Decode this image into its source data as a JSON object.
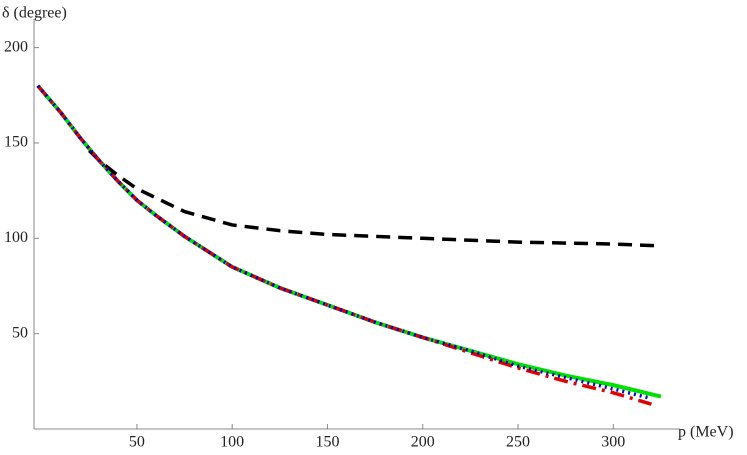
{
  "chart_data": {
    "type": "line",
    "x_label": "p (MeV)",
    "y_label": "δ (degree)",
    "xlim": [
      -4,
      335
    ],
    "ylim": [
      0,
      215
    ],
    "xticks": [
      50,
      100,
      150,
      200,
      250,
      300
    ],
    "yticks": [
      50,
      100,
      150,
      200
    ],
    "grid": false,
    "series": [
      {
        "color": "#00e000",
        "style": "solid",
        "x": [
          -2,
          10,
          20,
          30,
          40,
          50,
          60,
          75,
          100,
          125,
          150,
          175,
          200,
          225,
          250,
          275,
          300,
          325
        ],
        "values": [
          180,
          166,
          153,
          141,
          130,
          120,
          112,
          101,
          85,
          74,
          65,
          56,
          48,
          41,
          34,
          28,
          23,
          17
        ]
      },
      {
        "color": "#000000",
        "style": "dashed",
        "x": [
          25,
          30,
          40,
          50,
          75,
          100,
          125,
          150,
          200,
          250,
          300,
          325
        ],
        "values": [
          146,
          141,
          133,
          126,
          114,
          107,
          104,
          102,
          100,
          98,
          97,
          96
        ]
      },
      {
        "color": "#e00000",
        "style": "dashdot",
        "x": [
          -2,
          10,
          20,
          30,
          40,
          50,
          60,
          75,
          100,
          125,
          150,
          175,
          200,
          225,
          250,
          275,
          300,
          320
        ],
        "values": [
          180,
          166,
          153,
          141,
          130,
          120,
          112,
          101,
          85,
          74,
          65,
          56,
          48,
          40,
          32,
          25,
          19,
          13
        ]
      },
      {
        "color": "#0000d0",
        "style": "dotted",
        "x": [
          -2,
          10,
          20,
          30,
          40,
          50,
          60,
          75,
          100,
          125,
          150,
          175,
          200,
          225,
          250,
          275,
          300,
          320
        ],
        "values": [
          180,
          166,
          153,
          141,
          130,
          120,
          112,
          101,
          85,
          74,
          65,
          56,
          48,
          41,
          33,
          27,
          21,
          16
        ]
      }
    ]
  }
}
